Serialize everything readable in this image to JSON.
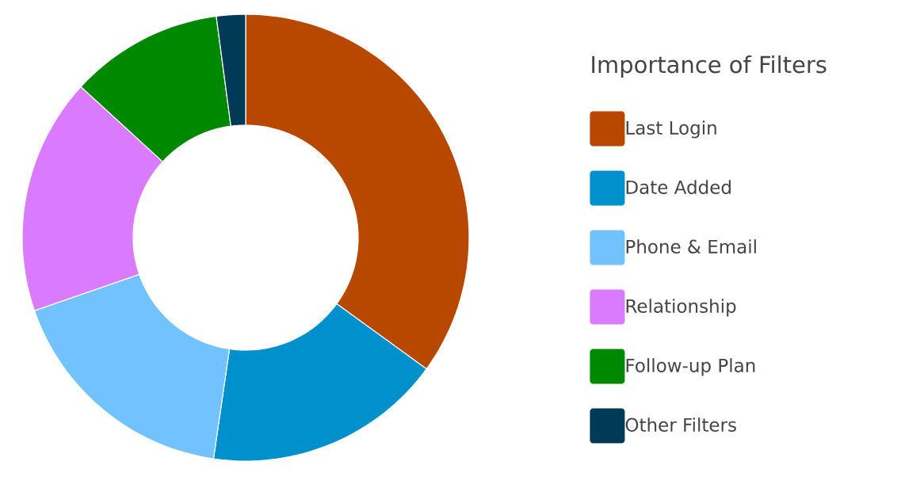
{
  "chart_data": {
    "type": "donut",
    "legend_title": "Importance of Filters",
    "legend": "right",
    "categories": [
      "Last Login",
      "Date Added",
      "Phone & Email",
      "Relationship",
      "Follow-up Plan",
      "Other Filters"
    ],
    "values": [
      35.0,
      17.3,
      17.4,
      17.1,
      11.1,
      2.1
    ],
    "colors": [
      "#b84700",
      "#0090cc",
      "#72c2ff",
      "#d97aff",
      "#008800",
      "#003a57"
    ]
  }
}
